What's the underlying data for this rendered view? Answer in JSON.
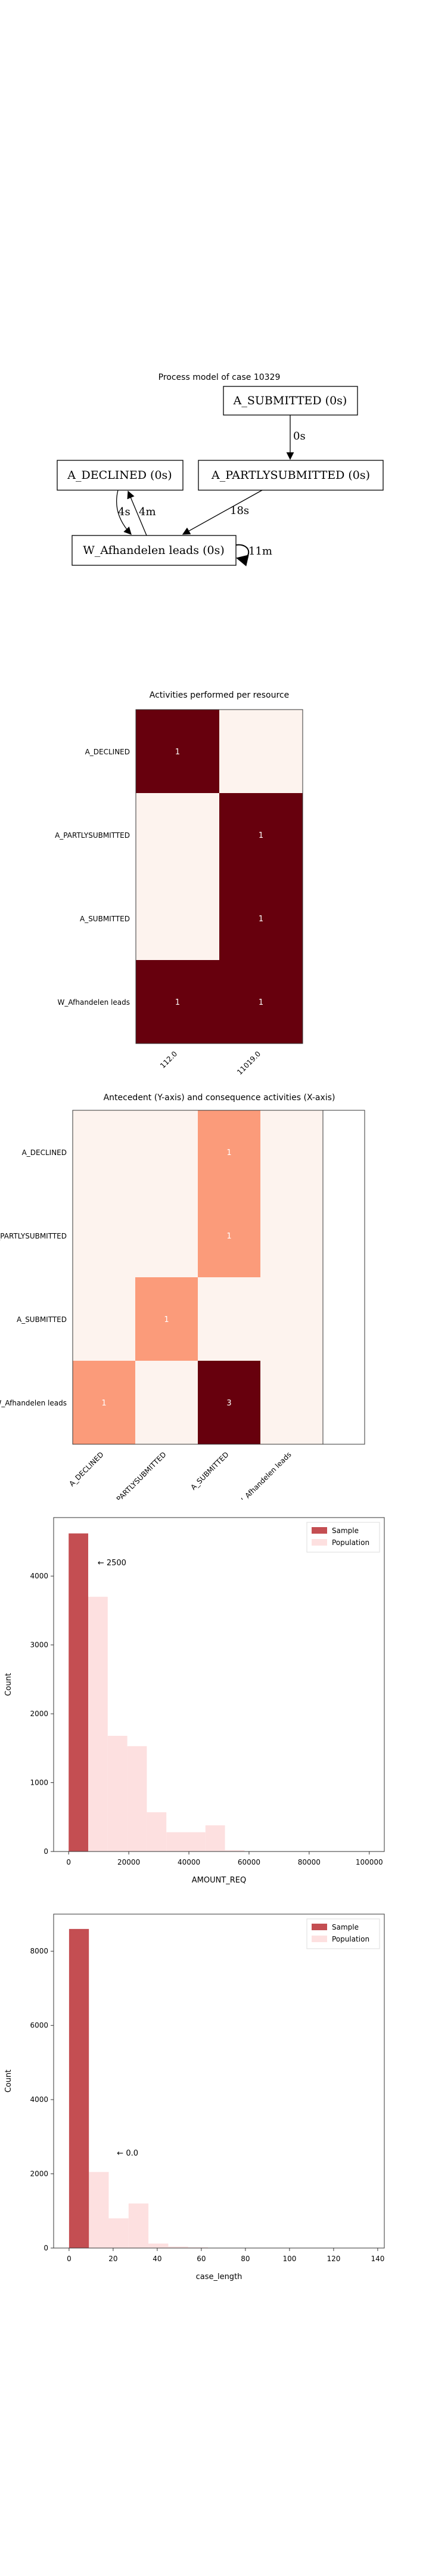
{
  "process_model": {
    "title": "Process model of case 10329",
    "nodes": [
      "A_SUBMITTED (0s)",
      "A_PARTLYSUBMITTED (0s)",
      "A_DECLINED (0s)",
      "W_Afhandelen leads (0s)"
    ],
    "edges": [
      {
        "from": "A_SUBMITTED (0s)",
        "to": "A_PARTLYSUBMITTED (0s)",
        "label": "0s"
      },
      {
        "from": "A_PARTLYSUBMITTED (0s)",
        "to": "W_Afhandelen leads (0s)",
        "label": "18s"
      },
      {
        "from": "W_Afhandelen leads (0s)",
        "to": "A_DECLINED (0s)",
        "label": "4m"
      },
      {
        "from": "A_DECLINED (0s)",
        "to": "W_Afhandelen leads (0s)",
        "label": "4s"
      },
      {
        "from": "W_Afhandelen leads (0s)",
        "to": "W_Afhandelen leads (0s)",
        "label": "11m"
      }
    ]
  },
  "chart_data": [
    {
      "type": "heatmap",
      "title": "Activities performed per resource",
      "rows": [
        "A_DECLINED",
        "A_PARTLYSUBMITTED",
        "A_SUBMITTED",
        "W_Afhandelen leads"
      ],
      "columns": [
        "112.0",
        "11019.0"
      ],
      "values": [
        [
          1,
          0
        ],
        [
          0,
          1
        ],
        [
          0,
          1
        ],
        [
          1,
          1
        ]
      ],
      "colors": {
        "low": "#fdf3ee",
        "high": "#67000d"
      }
    },
    {
      "type": "heatmap",
      "title": "Antecedent (Y-axis) and consequence activities (X-axis)",
      "rows": [
        "A_DECLINED",
        "A_PARTLYSUBMITTED",
        "A_SUBMITTED",
        "W_Afhandelen leads"
      ],
      "columns": [
        "A_DECLINED",
        "A_PARTLYSUBMITTED",
        "A_SUBMITTED",
        "W_Afhandelen leads"
      ],
      "values": [
        [
          0,
          0,
          1,
          0
        ],
        [
          0,
          0,
          1,
          0
        ],
        [
          0,
          1,
          0,
          0
        ],
        [
          1,
          0,
          3,
          0
        ]
      ],
      "colors": {
        "low": "#fdf3ee",
        "mid": "#fb9b7a",
        "high": "#67000d"
      }
    },
    {
      "type": "bar",
      "xlabel": "AMOUNT_REQ",
      "ylabel": "Count",
      "annotation": "← 2500",
      "annotation_x": 2500,
      "xlim": [
        -5000,
        105000
      ],
      "ylim": [
        0,
        4850
      ],
      "xticks": [
        0,
        20000,
        40000,
        60000,
        80000,
        100000
      ],
      "yticks": [
        0,
        1000,
        2000,
        3000,
        4000
      ],
      "legend": [
        "Sample",
        "Population"
      ],
      "legend_position": "top-right",
      "series": [
        {
          "name": "Sample",
          "color": "#c44e52",
          "bins": [
            {
              "x0": 0,
              "x1": 6500,
              "count": 4620
            }
          ]
        },
        {
          "name": "Population",
          "color": "#fde0e0",
          "bins": [
            {
              "x0": 6500,
              "x1": 13000,
              "count": 3700
            },
            {
              "x0": 13000,
              "x1": 19500,
              "count": 1680
            },
            {
              "x0": 19500,
              "x1": 26000,
              "count": 1530
            },
            {
              "x0": 26000,
              "x1": 32500,
              "count": 570
            },
            {
              "x0": 32500,
              "x1": 39000,
              "count": 280
            },
            {
              "x0": 39000,
              "x1": 45500,
              "count": 280
            },
            {
              "x0": 45500,
              "x1": 52000,
              "count": 380
            },
            {
              "x0": 52000,
              "x1": 58500,
              "count": 20
            }
          ]
        }
      ]
    },
    {
      "type": "bar",
      "xlabel": "case_length",
      "ylabel": "Count",
      "annotation": "← 0.0",
      "annotation_x": 12,
      "xlim": [
        -7,
        143
      ],
      "ylim": [
        0,
        9000
      ],
      "xticks": [
        0,
        20,
        40,
        60,
        80,
        100,
        120,
        140
      ],
      "yticks": [
        0,
        2000,
        4000,
        6000,
        8000
      ],
      "legend": [
        "Sample",
        "Population"
      ],
      "legend_position": "top-right",
      "series": [
        {
          "name": "Sample",
          "color": "#c44e52",
          "bins": [
            {
              "x0": 0,
              "x1": 9,
              "count": 8600
            }
          ]
        },
        {
          "name": "Population",
          "color": "#fde0e0",
          "bins": [
            {
              "x0": 9,
              "x1": 18,
              "count": 2050
            },
            {
              "x0": 18,
              "x1": 27,
              "count": 800
            },
            {
              "x0": 27,
              "x1": 36,
              "count": 1200
            },
            {
              "x0": 36,
              "x1": 45,
              "count": 120
            },
            {
              "x0": 45,
              "x1": 54,
              "count": 40
            },
            {
              "x0": 54,
              "x1": 63,
              "count": 20
            }
          ]
        }
      ]
    }
  ]
}
